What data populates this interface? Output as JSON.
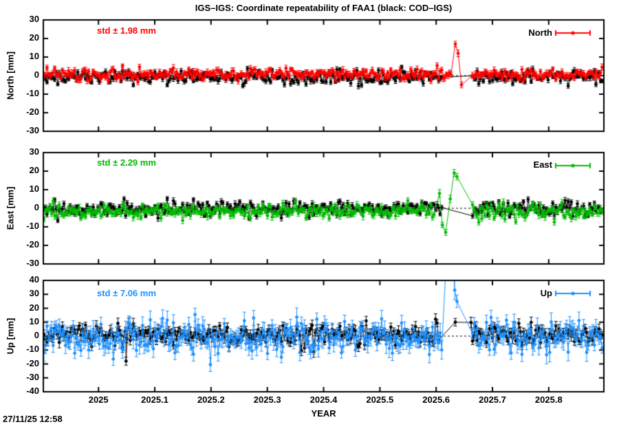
{
  "title": "IGS–IGS: Coordinate repeatability of FAA1 (black: COD–IGS)",
  "xlabel": "YEAR",
  "timestamp": "27/11/25 12:58",
  "x_tick_labels": [
    "2025",
    "2025.1",
    "2025.2",
    "2025.3",
    "2025.4",
    "2025.5",
    "2025.6",
    "2025.7",
    "2025.8"
  ],
  "chart_data": [
    {
      "type": "scatter",
      "panel": "north",
      "ylabel": "North [mm]",
      "std_annotation": "std ± 1.98 mm",
      "legend": "North",
      "color": "#ff0000",
      "black_color": "#000000",
      "ylim": [
        -30,
        30
      ],
      "ytick_step": 10,
      "ytick_labels": [
        "30",
        "20",
        "10",
        "0",
        "-10",
        "-20",
        "-30"
      ],
      "x_range": [
        2024.902,
        2025.898
      ],
      "zero_line": "dashed",
      "series": [
        {
          "name": "COD-IGS",
          "color": "#000000",
          "mean": -0.8,
          "noise_std": 1.9,
          "err_bar": 1.2,
          "gaps": [
            [
              2025.612,
              2025.662
            ]
          ],
          "outliers": []
        },
        {
          "name": "IGS-IGS",
          "color": "#ff0000",
          "mean": 0.8,
          "noise_std": 1.6,
          "err_bar": 1.4,
          "gaps": [
            [
              2025.628,
              2025.662
            ]
          ],
          "outliers": [
            [
              2025.634,
              17
            ],
            [
              2025.639,
              12
            ],
            [
              2025.645,
              -5
            ]
          ]
        }
      ]
    },
    {
      "type": "scatter",
      "panel": "east",
      "ylabel": "East [mm]",
      "std_annotation": "std ± 2.29 mm",
      "legend": "East",
      "color": "#00bb00",
      "black_color": "#000000",
      "ylim": [
        -30,
        30
      ],
      "ytick_step": 10,
      "ytick_labels": [
        "30",
        "20",
        "10",
        "0",
        "-10",
        "-20",
        "-30"
      ],
      "x_range": [
        2024.902,
        2025.898
      ],
      "zero_line": "dashed",
      "series": [
        {
          "name": "COD-IGS",
          "color": "#000000",
          "mean": -0.3,
          "noise_std": 2.1,
          "err_bar": 1.3,
          "gaps": [
            [
              2025.612,
              2025.662
            ]
          ],
          "outliers": []
        },
        {
          "name": "IGS-IGS",
          "color": "#00bb00",
          "mean": -1.6,
          "noise_std": 1.9,
          "err_bar": 1.5,
          "gaps": [
            [
              2025.598,
              2025.662
            ]
          ],
          "outliers": [
            [
              2025.606,
              8
            ],
            [
              2025.611,
              -9
            ],
            [
              2025.617,
              -13
            ],
            [
              2025.625,
              5
            ],
            [
              2025.632,
              19
            ],
            [
              2025.637,
              17
            ]
          ]
        }
      ]
    },
    {
      "type": "scatter",
      "panel": "up",
      "ylabel": "Up [mm]",
      "std_annotation": "std ± 7.06 mm",
      "legend": "Up",
      "color": "#1e90ff",
      "black_color": "#000000",
      "ylim": [
        -40,
        40
      ],
      "ytick_step": 10,
      "ytick_labels": [
        "40",
        "30",
        "20",
        "10",
        "0",
        "-10",
        "-20",
        "-30",
        "-40"
      ],
      "x_range": [
        2024.902,
        2025.898
      ],
      "zero_line": "dashed",
      "series": [
        {
          "name": "COD-IGS",
          "color": "#000000",
          "mean": 1.0,
          "noise_std": 3.8,
          "err_bar": 3.0,
          "gaps": [
            [
              2025.605,
              2025.66
            ]
          ],
          "outliers": [
            [
              2025.049,
              -18
            ],
            [
              2025.634,
              10
            ]
          ]
        },
        {
          "name": "IGS-IGS",
          "color": "#1e90ff",
          "mean": -1.2,
          "noise_std": 6.0,
          "err_bar": 5.2,
          "gaps": [
            [
              2025.61,
              2025.662
            ]
          ],
          "outliers": [
            [
              2025.618,
              55
            ],
            [
              2025.623,
              62
            ],
            [
              2025.628,
              58
            ],
            [
              2025.633,
              33
            ],
            [
              2025.637,
              25
            ]
          ]
        }
      ]
    }
  ]
}
